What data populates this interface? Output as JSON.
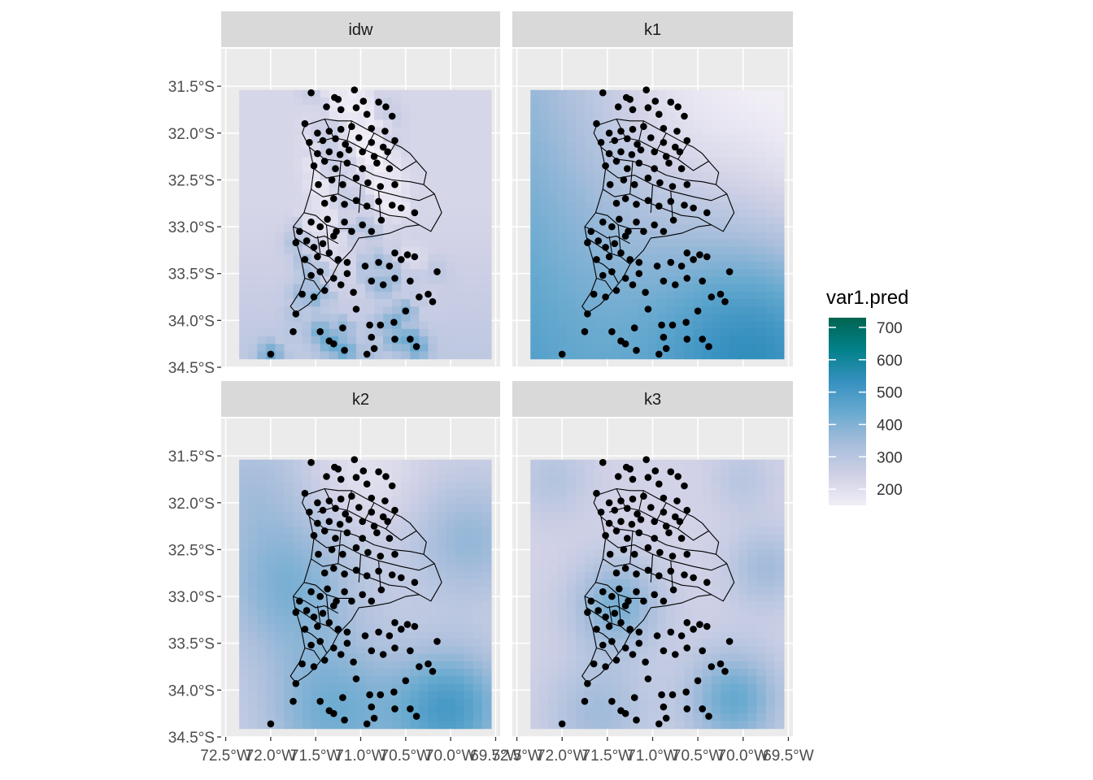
{
  "chart_data": {
    "type": "heatmap",
    "facets": [
      {
        "label": "idw",
        "pattern": "idw"
      },
      {
        "label": "k1",
        "pattern": "k1"
      },
      {
        "label": "k2",
        "pattern": "k2"
      },
      {
        "label": "k3",
        "pattern": "k3"
      }
    ],
    "x_ticks": [
      "72.5°W",
      "72.0°W",
      "71.5°W",
      "71.0°W",
      "70.5°W",
      "70.0°W",
      "69.5°W"
    ],
    "x_tick_values": [
      -72.5,
      -72.0,
      -71.5,
      -71.0,
      -70.5,
      -70.0,
      -69.5
    ],
    "y_ticks": [
      "31.5°S",
      "32.0°S",
      "32.5°S",
      "33.0°S",
      "33.5°S",
      "34.0°S",
      "34.5°S"
    ],
    "y_tick_values": [
      -31.5,
      -32.0,
      -32.5,
      -33.0,
      -33.5,
      -34.0,
      -34.5
    ],
    "xlim": [
      -72.55,
      -69.45
    ],
    "ylim": [
      -34.5,
      -31.1
    ],
    "raster_extent": {
      "xmin": -72.35,
      "xmax": -69.55,
      "ymin": -34.41,
      "ymax": -31.54
    },
    "legend": {
      "title": "var1.pred",
      "breaks": [
        200,
        300,
        400,
        500,
        600,
        700
      ],
      "range": [
        150,
        730
      ],
      "colors": [
        "#f1eef6",
        "#d0d1e6",
        "#a6bddb",
        "#67a9cf",
        "#3690c0",
        "#02818a",
        "#016450"
      ]
    },
    "stations": [
      [
        -71.55,
        -31.57
      ],
      [
        -71.29,
        -31.62
      ],
      [
        -71.25,
        -31.64
      ],
      [
        -71.07,
        -31.54
      ],
      [
        -70.97,
        -31.66
      ],
      [
        -70.8,
        -31.67
      ],
      [
        -71.38,
        -31.72
      ],
      [
        -71.22,
        -31.75
      ],
      [
        -71.05,
        -31.73
      ],
      [
        -70.93,
        -31.8
      ],
      [
        -70.72,
        -31.72
      ],
      [
        -70.65,
        -31.82
      ],
      [
        -71.62,
        -31.9
      ],
      [
        -71.48,
        -32.0
      ],
      [
        -71.35,
        -31.98
      ],
      [
        -71.22,
        -31.96
      ],
      [
        -71.1,
        -31.93
      ],
      [
        -70.88,
        -31.95
      ],
      [
        -70.73,
        -31.98
      ],
      [
        -71.57,
        -32.1
      ],
      [
        -71.42,
        -32.08
      ],
      [
        -71.28,
        -32.06
      ],
      [
        -71.17,
        -32.12
      ],
      [
        -71.02,
        -32.05
      ],
      [
        -70.88,
        -32.1
      ],
      [
        -70.75,
        -32.15
      ],
      [
        -70.62,
        -32.08
      ],
      [
        -71.48,
        -32.22
      ],
      [
        -71.35,
        -32.2
      ],
      [
        -71.23,
        -32.23
      ],
      [
        -71.13,
        -32.18
      ],
      [
        -70.98,
        -32.2
      ],
      [
        -70.85,
        -32.25
      ],
      [
        -70.7,
        -32.2
      ],
      [
        -71.52,
        -32.35
      ],
      [
        -71.4,
        -32.3
      ],
      [
        -71.28,
        -32.38
      ],
      [
        -71.15,
        -32.32
      ],
      [
        -70.98,
        -32.38
      ],
      [
        -70.82,
        -32.32
      ],
      [
        -70.68,
        -32.38
      ],
      [
        -71.47,
        -32.55
      ],
      [
        -71.32,
        -32.5
      ],
      [
        -71.2,
        -32.55
      ],
      [
        -71.05,
        -32.48
      ],
      [
        -70.92,
        -32.53
      ],
      [
        -70.78,
        -32.57
      ],
      [
        -70.62,
        -32.55
      ],
      [
        -71.4,
        -32.75
      ],
      [
        -71.3,
        -32.7
      ],
      [
        -71.18,
        -32.76
      ],
      [
        -71.05,
        -32.72
      ],
      [
        -70.93,
        -32.78
      ],
      [
        -70.8,
        -32.73
      ],
      [
        -70.65,
        -32.77
      ],
      [
        -70.55,
        -32.8
      ],
      [
        -70.4,
        -32.85
      ],
      [
        -71.68,
        -33.05
      ],
      [
        -71.55,
        -32.95
      ],
      [
        -71.45,
        -33.0
      ],
      [
        -71.37,
        -32.92
      ],
      [
        -71.27,
        -33.05
      ],
      [
        -71.18,
        -32.95
      ],
      [
        -71.1,
        -33.05
      ],
      [
        -70.98,
        -32.98
      ],
      [
        -70.88,
        -33.05
      ],
      [
        -70.77,
        -32.93
      ],
      [
        -71.72,
        -33.17
      ],
      [
        -71.6,
        -33.15
      ],
      [
        -71.52,
        -33.22
      ],
      [
        -71.42,
        -33.18
      ],
      [
        -71.3,
        -33.1
      ],
      [
        -71.62,
        -33.35
      ],
      [
        -71.48,
        -33.32
      ],
      [
        -71.35,
        -33.28
      ],
      [
        -71.25,
        -33.35
      ],
      [
        -71.15,
        -33.38
      ],
      [
        -71.55,
        -33.52
      ],
      [
        -71.45,
        -33.48
      ],
      [
        -71.3,
        -33.55
      ],
      [
        -71.15,
        -33.5
      ],
      [
        -70.95,
        -33.42
      ],
      [
        -70.8,
        -33.38
      ],
      [
        -70.68,
        -33.42
      ],
      [
        -70.55,
        -33.35
      ],
      [
        -70.48,
        -33.3
      ],
      [
        -70.62,
        -33.28
      ],
      [
        -70.4,
        -33.32
      ],
      [
        -71.65,
        -33.72
      ],
      [
        -71.52,
        -33.75
      ],
      [
        -71.4,
        -33.68
      ],
      [
        -71.22,
        -33.62
      ],
      [
        -71.08,
        -33.7
      ],
      [
        -70.88,
        -33.58
      ],
      [
        -70.75,
        -33.62
      ],
      [
        -70.62,
        -33.55
      ],
      [
        -70.45,
        -33.58
      ],
      [
        -70.35,
        -33.75
      ],
      [
        -70.25,
        -33.72
      ],
      [
        -70.15,
        -33.48
      ],
      [
        -70.2,
        -33.8
      ],
      [
        -71.72,
        -33.93
      ],
      [
        -71.05,
        -33.88
      ],
      [
        -70.9,
        -34.05
      ],
      [
        -70.63,
        -34.02
      ],
      [
        -70.5,
        -33.9
      ],
      [
        -71.45,
        -34.12
      ],
      [
        -71.35,
        -34.22
      ],
      [
        -71.3,
        -34.25
      ],
      [
        -71.2,
        -34.08
      ],
      [
        -70.88,
        -34.18
      ],
      [
        -70.78,
        -34.05
      ],
      [
        -70.62,
        -34.2
      ],
      [
        -70.45,
        -34.2
      ],
      [
        -70.38,
        -34.28
      ],
      [
        -71.75,
        -34.12
      ],
      [
        -72.0,
        -34.36
      ],
      [
        -70.93,
        -34.36
      ],
      [
        -71.18,
        -34.32
      ],
      [
        -70.85,
        -34.3
      ]
    ],
    "boundary_polygons": [
      [
        [
          -71.62,
          -31.92
        ],
        [
          -71.4,
          -31.85
        ],
        [
          -71.25,
          -31.87
        ],
        [
          -71.1,
          -31.87
        ],
        [
          -70.95,
          -31.95
        ],
        [
          -70.85,
          -32.0
        ],
        [
          -70.72,
          -32.07
        ],
        [
          -70.62,
          -32.12
        ],
        [
          -70.55,
          -32.15
        ],
        [
          -70.45,
          -32.22
        ],
        [
          -70.38,
          -32.3
        ],
        [
          -70.27,
          -32.42
        ],
        [
          -70.3,
          -32.55
        ],
        [
          -70.18,
          -32.65
        ],
        [
          -70.1,
          -32.85
        ],
        [
          -70.22,
          -33.05
        ],
        [
          -70.35,
          -32.98
        ],
        [
          -70.5,
          -33.0
        ],
        [
          -70.68,
          -33.07
        ],
        [
          -70.85,
          -33.1
        ],
        [
          -71.02,
          -33.12
        ],
        [
          -71.1,
          -33.25
        ],
        [
          -71.25,
          -33.4
        ],
        [
          -71.33,
          -33.55
        ],
        [
          -71.48,
          -33.73
        ],
        [
          -71.58,
          -33.83
        ],
        [
          -71.72,
          -33.92
        ],
        [
          -71.78,
          -33.85
        ],
        [
          -71.68,
          -33.7
        ],
        [
          -71.62,
          -33.55
        ],
        [
          -71.66,
          -33.35
        ],
        [
          -71.73,
          -33.12
        ],
        [
          -71.75,
          -33.0
        ],
        [
          -71.63,
          -32.85
        ],
        [
          -71.55,
          -32.6
        ],
        [
          -71.52,
          -32.38
        ],
        [
          -71.57,
          -32.15
        ],
        [
          -71.65,
          -32.0
        ],
        [
          -71.62,
          -31.92
        ]
      ],
      [
        [
          -71.4,
          -31.85
        ],
        [
          -71.3,
          -32.05
        ],
        [
          -71.48,
          -32.1
        ]
      ],
      [
        [
          -71.1,
          -31.87
        ],
        [
          -71.15,
          -32.08
        ],
        [
          -71.3,
          -32.05
        ]
      ],
      [
        [
          -70.85,
          -32.0
        ],
        [
          -70.95,
          -32.18
        ],
        [
          -71.15,
          -32.08
        ]
      ],
      [
        [
          -70.62,
          -32.12
        ],
        [
          -70.72,
          -32.28
        ],
        [
          -70.95,
          -32.18
        ]
      ],
      [
        [
          -70.38,
          -32.3
        ],
        [
          -70.55,
          -32.4
        ],
        [
          -70.72,
          -32.28
        ]
      ],
      [
        [
          -71.57,
          -32.15
        ],
        [
          -71.4,
          -32.28
        ],
        [
          -71.22,
          -32.3
        ],
        [
          -71.05,
          -32.35
        ],
        [
          -70.85,
          -32.45
        ],
        [
          -70.65,
          -32.5
        ],
        [
          -70.45,
          -32.52
        ],
        [
          -70.3,
          -32.55
        ]
      ],
      [
        [
          -71.52,
          -32.38
        ],
        [
          -71.38,
          -32.48
        ],
        [
          -71.2,
          -32.45
        ],
        [
          -71.0,
          -32.55
        ],
        [
          -70.8,
          -32.62
        ],
        [
          -70.55,
          -32.68
        ],
        [
          -70.35,
          -32.72
        ],
        [
          -70.18,
          -32.65
        ]
      ],
      [
        [
          -71.55,
          -32.6
        ],
        [
          -71.42,
          -32.68
        ],
        [
          -71.25,
          -32.65
        ],
        [
          -71.1,
          -32.72
        ],
        [
          -70.9,
          -32.8
        ],
        [
          -70.68,
          -32.88
        ],
        [
          -70.5,
          -32.9
        ],
        [
          -70.35,
          -32.98
        ]
      ],
      [
        [
          -71.22,
          -32.3
        ],
        [
          -71.25,
          -32.65
        ]
      ],
      [
        [
          -71.0,
          -32.55
        ],
        [
          -71.02,
          -32.85
        ]
      ],
      [
        [
          -70.8,
          -32.62
        ],
        [
          -70.78,
          -32.9
        ]
      ],
      [
        [
          -71.63,
          -32.85
        ],
        [
          -71.5,
          -32.88
        ],
        [
          -71.38,
          -32.98
        ],
        [
          -71.25,
          -33.02
        ],
        [
          -71.1,
          -33.02
        ]
      ],
      [
        [
          -71.75,
          -33.0
        ],
        [
          -71.62,
          -33.05
        ],
        [
          -71.5,
          -33.12
        ],
        [
          -71.4,
          -33.1
        ],
        [
          -71.25,
          -33.18
        ]
      ],
      [
        [
          -71.73,
          -33.12
        ],
        [
          -71.6,
          -33.2
        ],
        [
          -71.48,
          -33.28
        ],
        [
          -71.35,
          -33.32
        ],
        [
          -71.25,
          -33.4
        ]
      ],
      [
        [
          -71.66,
          -33.35
        ],
        [
          -71.55,
          -33.4
        ],
        [
          -71.45,
          -33.48
        ],
        [
          -71.38,
          -33.6
        ]
      ],
      [
        [
          -71.62,
          -33.55
        ],
        [
          -71.52,
          -33.58
        ],
        [
          -71.45,
          -33.68
        ]
      ],
      [
        [
          -71.48,
          -33.1
        ],
        [
          -71.45,
          -33.28
        ]
      ],
      [
        [
          -71.38,
          -32.98
        ],
        [
          -71.35,
          -33.32
        ]
      ]
    ]
  }
}
